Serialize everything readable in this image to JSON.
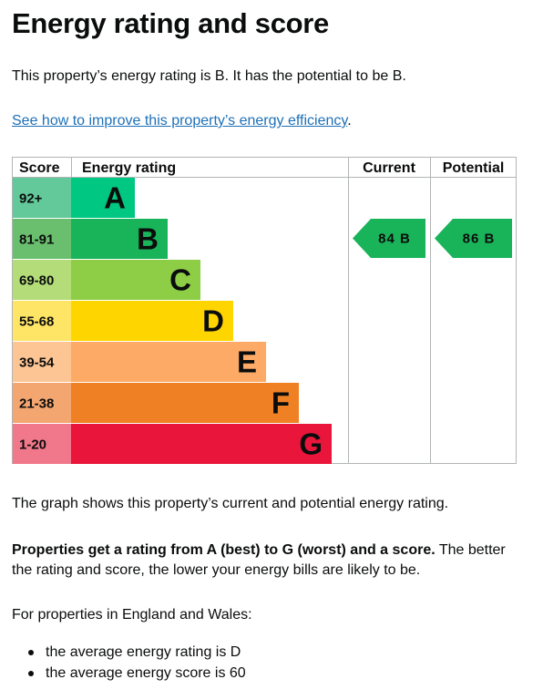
{
  "heading": "Energy rating and score",
  "intro": "This property’s energy rating is B. It has the potential to be B.",
  "link": {
    "text": "See how to improve this property’s energy efficiency",
    "after": "."
  },
  "chart_data": {
    "type": "table",
    "headers": {
      "score": "Score",
      "rating": "Energy rating",
      "current": "Current",
      "potential": "Potential"
    },
    "bands": [
      {
        "score": "92+",
        "letter": "A",
        "score_color": "#63c99b",
        "bar_color": "#00c781",
        "text_color": "#0b0c0c"
      },
      {
        "score": "81-91",
        "letter": "B",
        "score_color": "#6abf6e",
        "bar_color": "#19b459",
        "text_color": "#0b0c0c"
      },
      {
        "score": "69-80",
        "letter": "C",
        "score_color": "#b4dd7a",
        "bar_color": "#8dce46",
        "text_color": "#0b0c0c"
      },
      {
        "score": "55-68",
        "letter": "D",
        "score_color": "#ffe566",
        "bar_color": "#ffd500",
        "text_color": "#0b0c0c"
      },
      {
        "score": "39-54",
        "letter": "E",
        "score_color": "#fdc594",
        "bar_color": "#fcaa65",
        "text_color": "#0b0c0c"
      },
      {
        "score": "21-38",
        "letter": "F",
        "score_color": "#f4a671",
        "bar_color": "#ef8023",
        "text_color": "#0b0c0c"
      },
      {
        "score": "1-20",
        "letter": "G",
        "score_color": "#f1778a",
        "bar_color": "#e9153b",
        "text_color": "#0b0c0c"
      }
    ],
    "current": {
      "score": 84,
      "letter": "B",
      "label": "84 B",
      "color": "#19b459"
    },
    "potential": {
      "score": 86,
      "letter": "B",
      "label": "86 B",
      "color": "#19b459"
    }
  },
  "graph_note": "The graph shows this property’s current and potential energy rating.",
  "rating_info": {
    "bold": "Properties get a rating from A (best) to G (worst) and a score.",
    "rest": " The better the rating and score, the lower your energy bills are likely to be."
  },
  "region_intro": "For properties in England and Wales:",
  "averages": [
    "the average energy rating is D",
    "the average energy score is 60"
  ]
}
